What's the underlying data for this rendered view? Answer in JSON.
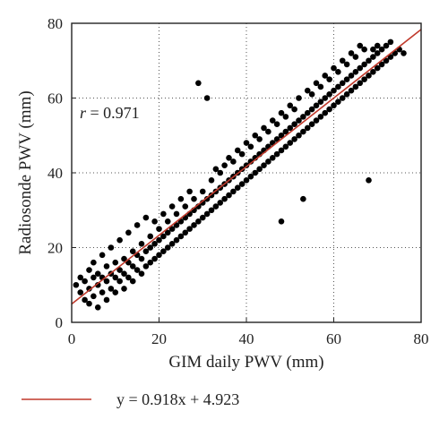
{
  "chart_data": {
    "type": "scatter",
    "xlabel": "GIM daily PWV (mm)",
    "ylabel": "Radiosonde PWV (mm)",
    "xlim": [
      0,
      80
    ],
    "ylim": [
      0,
      80
    ],
    "xticks": [
      "0",
      "20",
      "40",
      "60",
      "80"
    ],
    "yticks": [
      "0",
      "20",
      "40",
      "60",
      "80"
    ],
    "grid": "dotted",
    "annotation": {
      "var": "r",
      "text": " = 0.971"
    },
    "fit_line": {
      "slope": 0.918,
      "intercept": 4.923,
      "color": "#c0392b"
    },
    "legend": {
      "position": "bottom",
      "text": "y = 0.918x + 4.923"
    },
    "point_color": "#000000",
    "series": [
      {
        "points": [
          [
            1,
            10
          ],
          [
            2,
            12
          ],
          [
            2,
            8
          ],
          [
            3,
            6
          ],
          [
            3,
            11
          ],
          [
            4,
            5
          ],
          [
            4,
            9
          ],
          [
            4,
            14
          ],
          [
            5,
            7
          ],
          [
            5,
            12
          ],
          [
            5,
            16
          ],
          [
            6,
            4
          ],
          [
            6,
            10
          ],
          [
            6,
            13
          ],
          [
            7,
            8
          ],
          [
            7,
            12
          ],
          [
            7,
            18
          ],
          [
            8,
            6
          ],
          [
            8,
            11
          ],
          [
            8,
            15
          ],
          [
            9,
            9
          ],
          [
            9,
            13
          ],
          [
            9,
            20
          ],
          [
            10,
            8
          ],
          [
            10,
            12
          ],
          [
            10,
            16
          ],
          [
            11,
            11
          ],
          [
            11,
            14
          ],
          [
            11,
            22
          ],
          [
            12,
            9
          ],
          [
            12,
            13
          ],
          [
            12,
            17
          ],
          [
            13,
            12
          ],
          [
            13,
            16
          ],
          [
            13,
            24
          ],
          [
            14,
            11
          ],
          [
            14,
            15
          ],
          [
            14,
            19
          ],
          [
            15,
            14
          ],
          [
            15,
            18
          ],
          [
            15,
            26
          ],
          [
            16,
            13
          ],
          [
            16,
            17
          ],
          [
            16,
            21
          ],
          [
            17,
            15
          ],
          [
            17,
            19
          ],
          [
            17,
            28
          ],
          [
            18,
            16
          ],
          [
            18,
            20
          ],
          [
            18,
            23
          ],
          [
            19,
            17
          ],
          [
            19,
            21
          ],
          [
            19,
            27
          ],
          [
            20,
            18
          ],
          [
            20,
            22
          ],
          [
            20,
            25
          ],
          [
            21,
            19
          ],
          [
            21,
            23
          ],
          [
            21,
            29
          ],
          [
            22,
            20
          ],
          [
            22,
            24
          ],
          [
            22,
            27
          ],
          [
            23,
            21
          ],
          [
            23,
            25
          ],
          [
            23,
            31
          ],
          [
            24,
            22
          ],
          [
            24,
            26
          ],
          [
            24,
            29
          ],
          [
            25,
            23
          ],
          [
            25,
            27
          ],
          [
            25,
            33
          ],
          [
            26,
            24
          ],
          [
            26,
            28
          ],
          [
            26,
            31
          ],
          [
            27,
            25
          ],
          [
            27,
            29
          ],
          [
            27,
            35
          ],
          [
            28,
            26
          ],
          [
            28,
            30
          ],
          [
            28,
            33
          ],
          [
            29,
            27
          ],
          [
            29,
            31
          ],
          [
            29,
            64
          ],
          [
            30,
            28
          ],
          [
            30,
            32
          ],
          [
            30,
            35
          ],
          [
            31,
            29
          ],
          [
            31,
            33
          ],
          [
            31,
            60
          ],
          [
            32,
            30
          ],
          [
            32,
            34
          ],
          [
            32,
            38
          ],
          [
            33,
            31
          ],
          [
            33,
            35
          ],
          [
            33,
            41
          ],
          [
            34,
            32
          ],
          [
            34,
            36
          ],
          [
            34,
            40
          ],
          [
            35,
            33
          ],
          [
            35,
            37
          ],
          [
            35,
            42
          ],
          [
            36,
            34
          ],
          [
            36,
            38
          ],
          [
            36,
            44
          ],
          [
            37,
            35
          ],
          [
            37,
            39
          ],
          [
            37,
            43
          ],
          [
            38,
            36
          ],
          [
            38,
            40
          ],
          [
            38,
            46
          ],
          [
            39,
            37
          ],
          [
            39,
            41
          ],
          [
            39,
            45
          ],
          [
            40,
            38
          ],
          [
            40,
            42
          ],
          [
            40,
            48
          ],
          [
            41,
            39
          ],
          [
            41,
            43
          ],
          [
            41,
            47
          ],
          [
            42,
            40
          ],
          [
            42,
            44
          ],
          [
            42,
            50
          ],
          [
            43,
            41
          ],
          [
            43,
            45
          ],
          [
            43,
            49
          ],
          [
            44,
            42
          ],
          [
            44,
            46
          ],
          [
            44,
            52
          ],
          [
            45,
            43
          ],
          [
            45,
            47
          ],
          [
            45,
            51
          ],
          [
            46,
            44
          ],
          [
            46,
            48
          ],
          [
            46,
            54
          ],
          [
            47,
            45
          ],
          [
            47,
            49
          ],
          [
            47,
            53
          ],
          [
            48,
            46
          ],
          [
            48,
            50
          ],
          [
            48,
            56
          ],
          [
            48,
            27
          ],
          [
            49,
            47
          ],
          [
            49,
            51
          ],
          [
            49,
            55
          ],
          [
            50,
            48
          ],
          [
            50,
            52
          ],
          [
            50,
            58
          ],
          [
            51,
            49
          ],
          [
            51,
            53
          ],
          [
            51,
            57
          ],
          [
            52,
            50
          ],
          [
            52,
            54
          ],
          [
            52,
            60
          ],
          [
            53,
            51
          ],
          [
            53,
            55
          ],
          [
            53,
            33
          ],
          [
            54,
            52
          ],
          [
            54,
            56
          ],
          [
            54,
            62
          ],
          [
            55,
            53
          ],
          [
            55,
            57
          ],
          [
            55,
            61
          ],
          [
            56,
            54
          ],
          [
            56,
            58
          ],
          [
            56,
            64
          ],
          [
            57,
            55
          ],
          [
            57,
            59
          ],
          [
            57,
            63
          ],
          [
            58,
            56
          ],
          [
            58,
            60
          ],
          [
            58,
            66
          ],
          [
            59,
            57
          ],
          [
            59,
            61
          ],
          [
            59,
            65
          ],
          [
            60,
            58
          ],
          [
            60,
            62
          ],
          [
            60,
            68
          ],
          [
            61,
            59
          ],
          [
            61,
            63
          ],
          [
            61,
            67
          ],
          [
            62,
            60
          ],
          [
            62,
            64
          ],
          [
            62,
            70
          ],
          [
            63,
            61
          ],
          [
            63,
            65
          ],
          [
            63,
            69
          ],
          [
            64,
            62
          ],
          [
            64,
            66
          ],
          [
            64,
            72
          ],
          [
            65,
            63
          ],
          [
            65,
            67
          ],
          [
            65,
            71
          ],
          [
            66,
            64
          ],
          [
            66,
            68
          ],
          [
            66,
            74
          ],
          [
            67,
            65
          ],
          [
            67,
            69
          ],
          [
            67,
            73
          ],
          [
            68,
            66
          ],
          [
            68,
            70
          ],
          [
            68,
            38
          ],
          [
            69,
            67
          ],
          [
            69,
            71
          ],
          [
            69,
            73
          ],
          [
            70,
            68
          ],
          [
            70,
            72
          ],
          [
            70,
            74
          ],
          [
            71,
            69
          ],
          [
            71,
            73
          ],
          [
            72,
            70
          ],
          [
            72,
            74
          ],
          [
            73,
            71
          ],
          [
            73,
            75
          ],
          [
            74,
            72
          ],
          [
            75,
            73
          ],
          [
            76,
            72
          ]
        ]
      }
    ]
  }
}
